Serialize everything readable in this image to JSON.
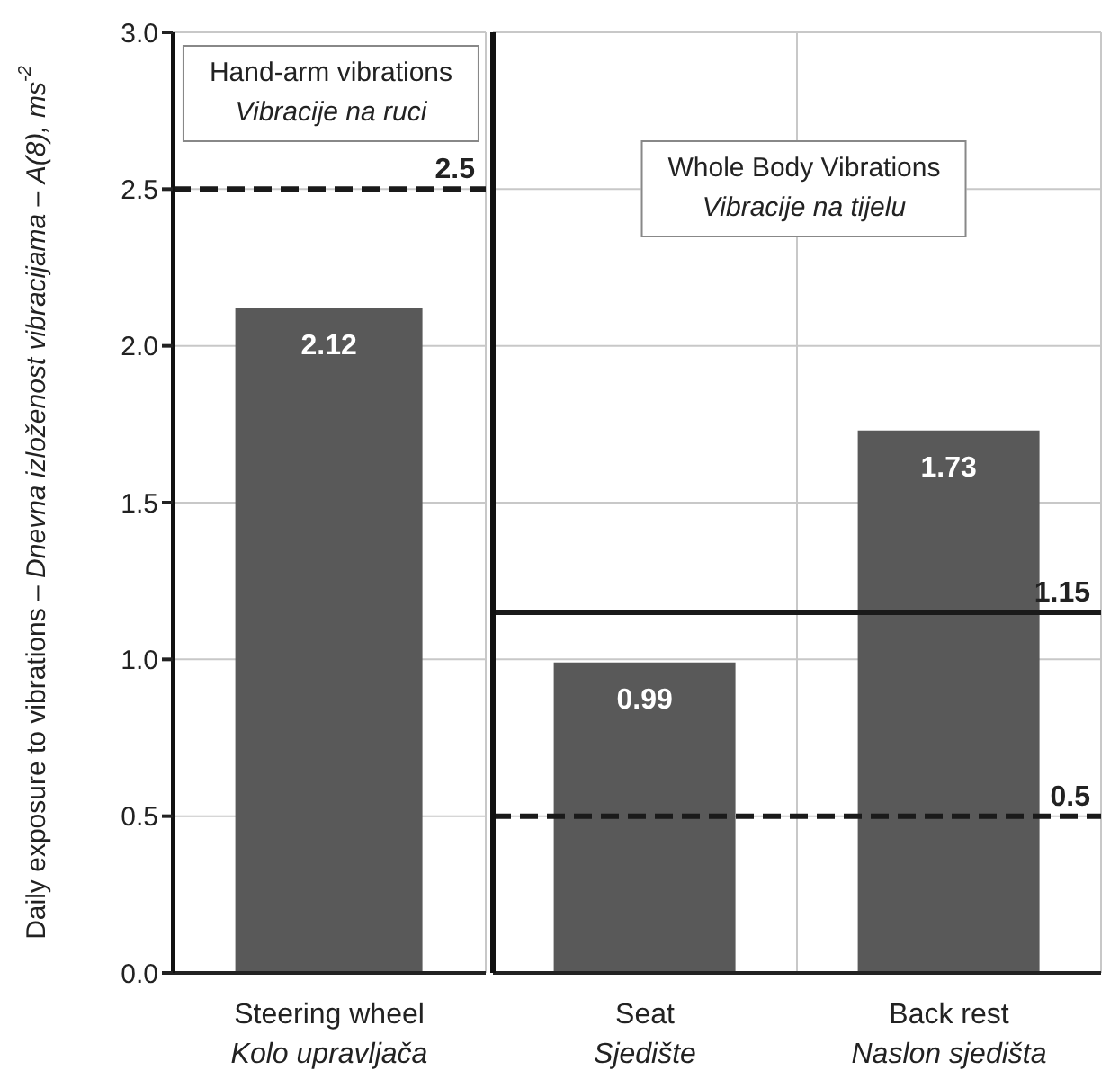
{
  "chart_data": [
    {
      "type": "bar",
      "ylabel": "Daily exposure to vibrations – Dnevna izloženost vibracijama – A(8), ms$^{-2}$",
      "categories": [
        "Steering wheel\nKolo upravljača"
      ],
      "values": [
        2.12
      ],
      "color": "#595959",
      "data_labels": true,
      "ylim": [
        0,
        3
      ],
      "yticks": [
        {
          "value": 0,
          "label": "0.0"
        },
        0.5,
        {
          "value": 1,
          "label": "1.0"
        },
        1.5,
        {
          "value": 2,
          "label": "2.0"
        },
        2.5,
        {
          "value": 3,
          "label": "3.0"
        }
      ],
      "grid": true,
      "ref_lines": [
        {
          "axis": "y",
          "value": 2.5,
          "label": "2.5",
          "color": "#1a1a1a",
          "line_style": "dashed"
        }
      ],
      "annotations": [
        "Hand-arm vibrations\nVibracije na ruci"
      ]
    },
    {
      "type": "bar",
      "categories": [
        "Seat\nSjedište",
        "Back rest\nNaslon sjedišta"
      ],
      "values": [
        0.99,
        1.73
      ],
      "color": "#595959",
      "data_labels": true,
      "ylim": [
        0,
        3
      ],
      "yticks": [
        0,
        0.5,
        1,
        1.5,
        2,
        2.5,
        3
      ],
      "tick_labels": "x",
      "grid": true,
      "ref_lines": [
        {
          "axis": "y",
          "value": 1.15,
          "label": "1.15",
          "color": "#1a1a1a",
          "line_style": "solid"
        },
        {
          "axis": "y",
          "value": 0.5,
          "label": "0.5",
          "color": "#1a1a1a",
          "line_style": "dashed"
        }
      ],
      "annotations": [
        "Whole Body Vibrations\nVibracije na tijelu"
      ]
    }
  ]
}
